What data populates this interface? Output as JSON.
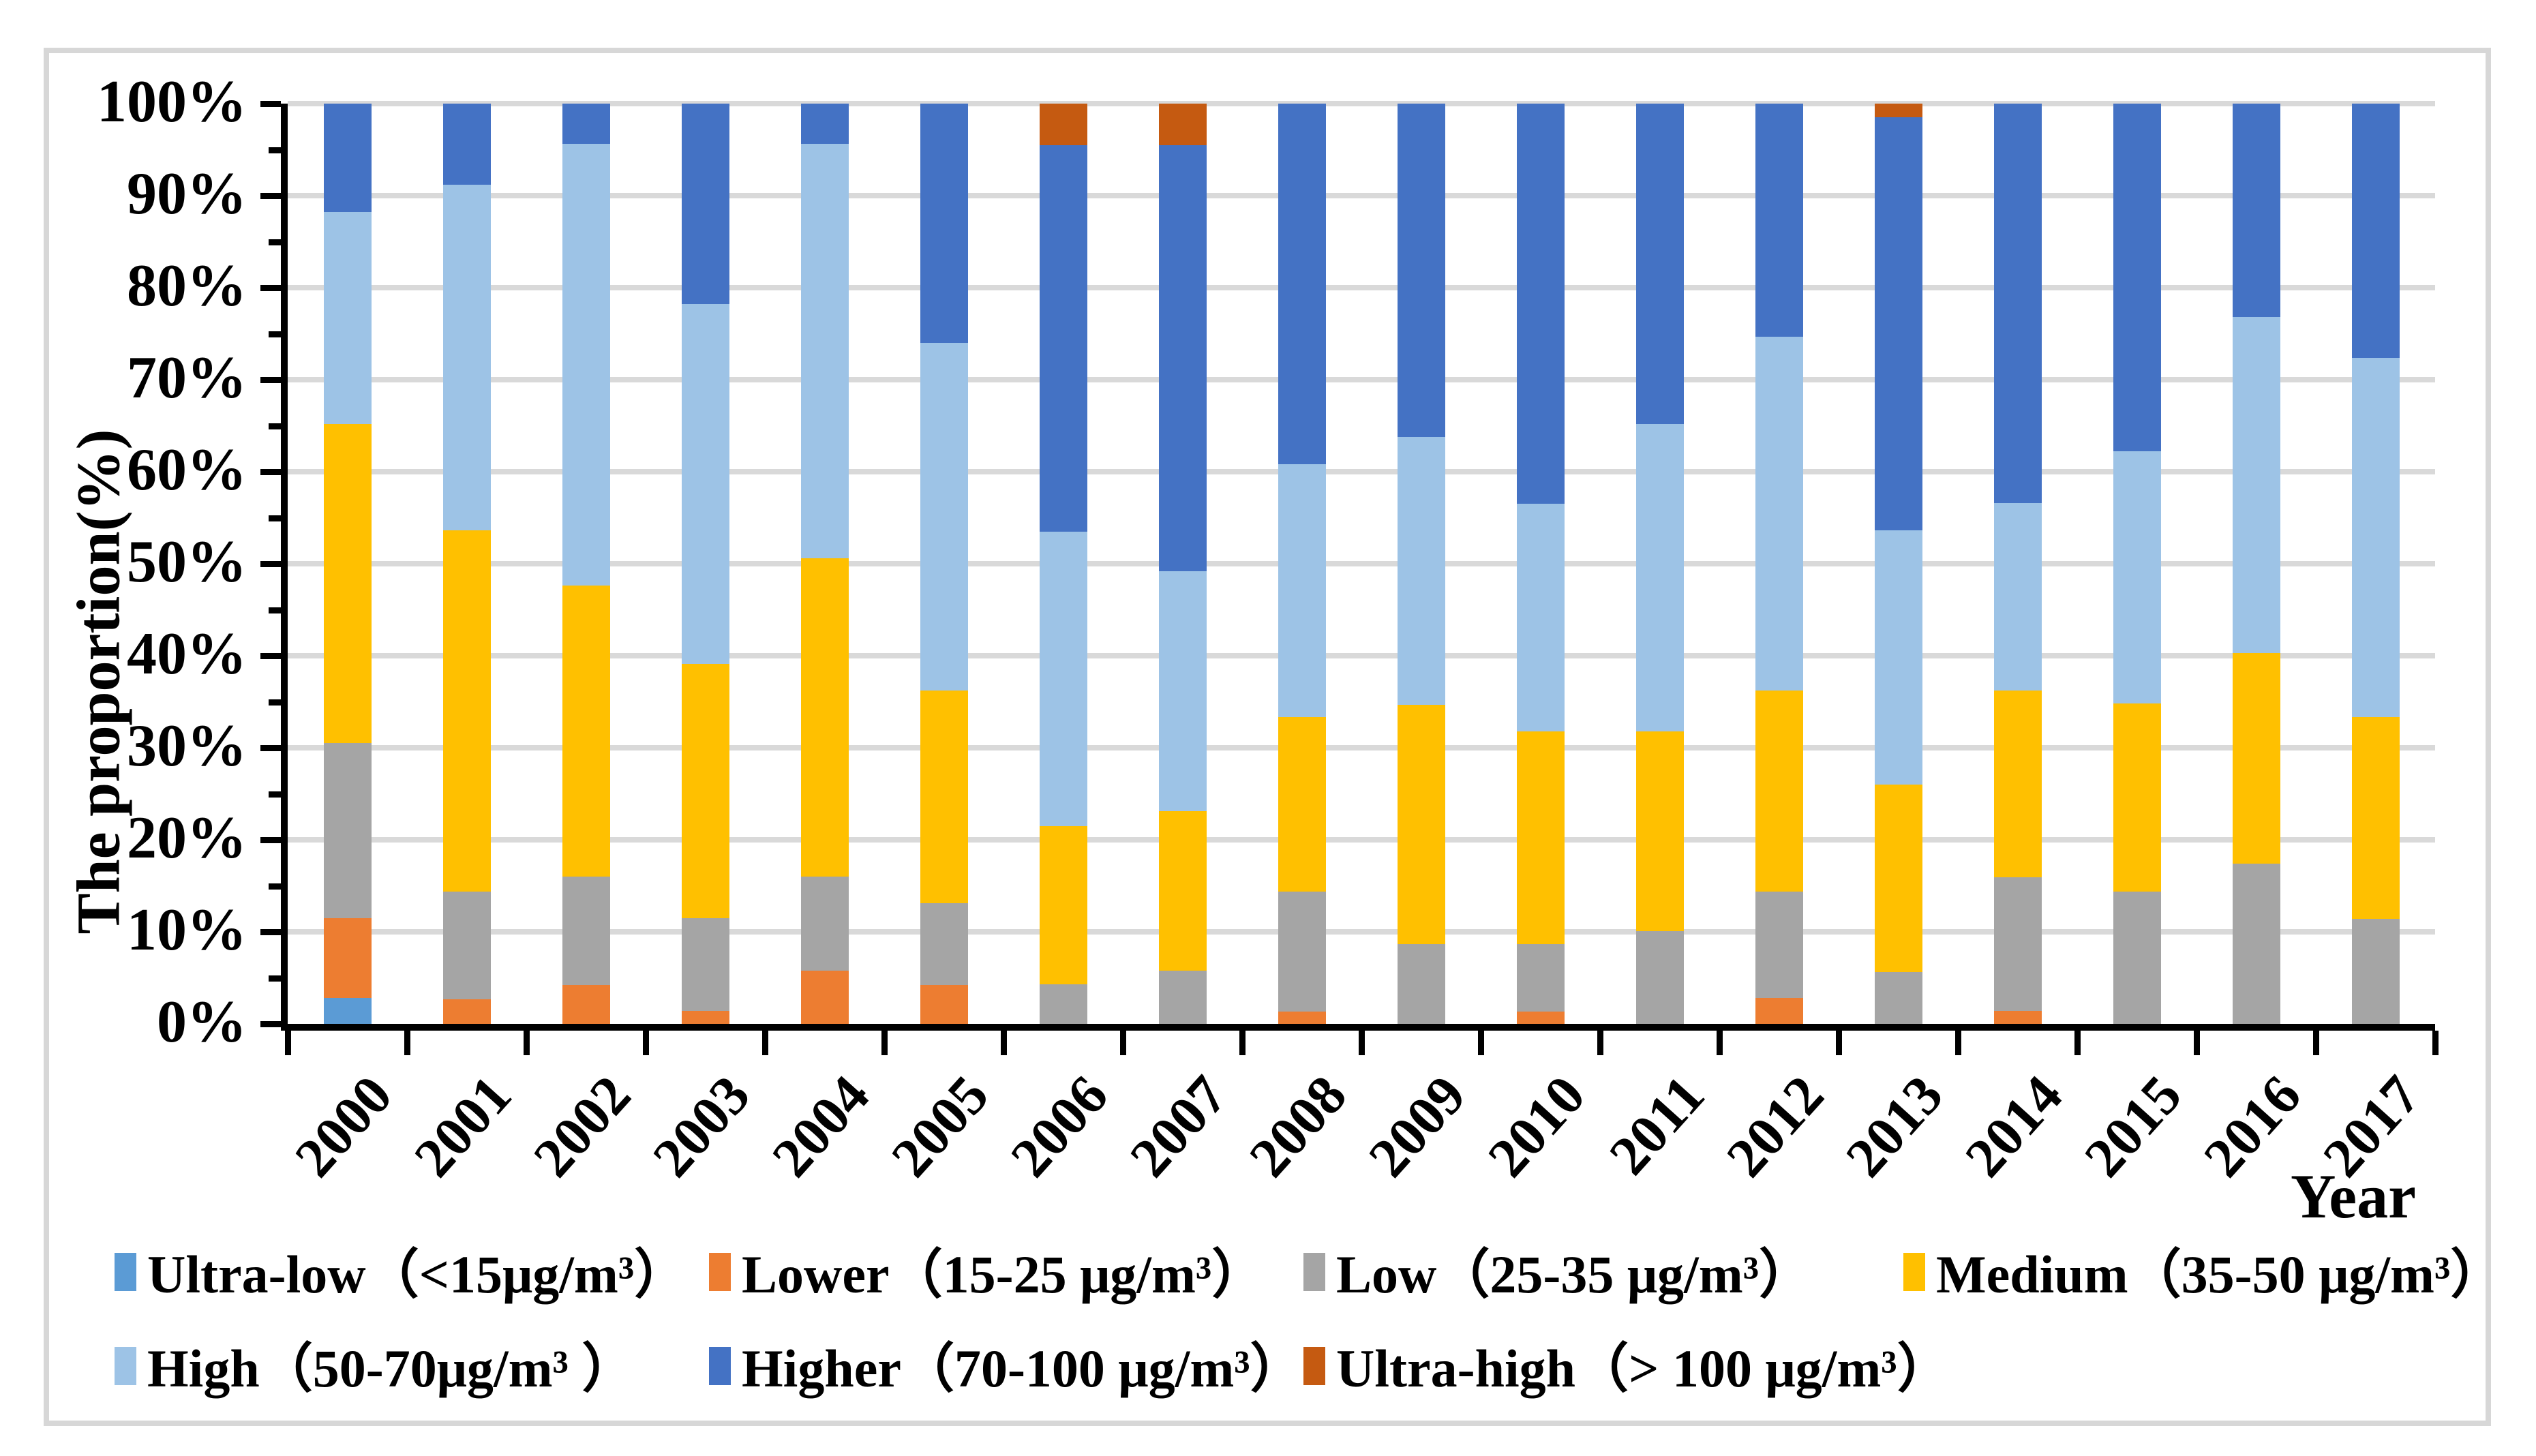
{
  "chart_data": {
    "type": "bar",
    "stacked": true,
    "orientation": "vertical",
    "title": "",
    "xlabel": "Year",
    "ylabel": "The proportion(%)",
    "x": [
      "2000",
      "2001",
      "2002",
      "2003",
      "2004",
      "2005",
      "2006",
      "2007",
      "2008",
      "2009",
      "2010",
      "2011",
      "2012",
      "2013",
      "2014",
      "2015",
      "2016",
      "2017"
    ],
    "ylim": [
      0,
      100
    ],
    "y_tick_labels": [
      "0%",
      "10%",
      "20%",
      "30%",
      "40%",
      "50%",
      "60%",
      "70%",
      "80%",
      "90%",
      "100%"
    ],
    "grid": true,
    "gridline_color": "#d9d9d9",
    "legend_position": "bottom",
    "series": [
      {
        "name": "Ultra-low（<15μg/m³）",
        "color": "#5B9BD5",
        "values": [
          2.8,
          0,
          0,
          0,
          0,
          0,
          0,
          0,
          0,
          0,
          0,
          0,
          0,
          0,
          0,
          0,
          0,
          0
        ]
      },
      {
        "name": "Lower（15-25 μg/m³）",
        "color": "#ED7D31",
        "values": [
          8.7,
          2.7,
          4.2,
          1.4,
          5.8,
          4.2,
          0,
          0,
          1.3,
          0,
          1.3,
          0,
          2.8,
          0,
          1.4,
          0,
          0,
          0
        ]
      },
      {
        "name": "Low（25-35 μg/m³）",
        "color": "#A5A5A5",
        "values": [
          19.0,
          11.7,
          11.8,
          10.1,
          10.2,
          8.9,
          4.3,
          5.8,
          13.1,
          8.7,
          7.4,
          10.1,
          11.6,
          5.6,
          14.5,
          14.4,
          17.4,
          11.4
        ]
      },
      {
        "name": "Medium（35-50 μg/m³）",
        "color": "#FFC000",
        "values": [
          34.7,
          39.2,
          31.6,
          27.6,
          34.6,
          23.1,
          17.2,
          17.3,
          18.9,
          26.0,
          23.1,
          21.7,
          21.8,
          20.4,
          20.3,
          20.4,
          22.9,
          21.9
        ]
      },
      {
        "name": "High（50-70μg/m³ ）",
        "color": "#9DC3E6",
        "values": [
          23.0,
          37.6,
          48.0,
          39.1,
          45.0,
          37.8,
          32.0,
          26.1,
          27.5,
          29.1,
          24.7,
          33.4,
          38.5,
          27.6,
          20.4,
          27.4,
          36.5,
          39.1
        ]
      },
      {
        "name": "Higher（70-100 μg/m³）",
        "color": "#4472C4",
        "values": [
          11.8,
          8.8,
          4.4,
          21.8,
          4.4,
          26.0,
          42.0,
          46.3,
          39.2,
          36.2,
          43.5,
          34.8,
          25.3,
          44.9,
          43.4,
          37.8,
          23.2,
          27.6
        ]
      },
      {
        "name": "Ultra-high（> 100 μg/m³）",
        "color": "#C55A11",
        "values": [
          0,
          0,
          0,
          0,
          0,
          0,
          4.5,
          4.5,
          0,
          0,
          0,
          0,
          0,
          1.5,
          0,
          0,
          0,
          0
        ]
      }
    ],
    "legend_rows": [
      [
        0,
        1,
        2,
        3
      ],
      [
        4,
        5,
        6
      ]
    ],
    "legend_row_y": [
      1822,
      1960
    ],
    "legend_col_x": [
      168,
      1040,
      1912,
      2792
    ]
  }
}
